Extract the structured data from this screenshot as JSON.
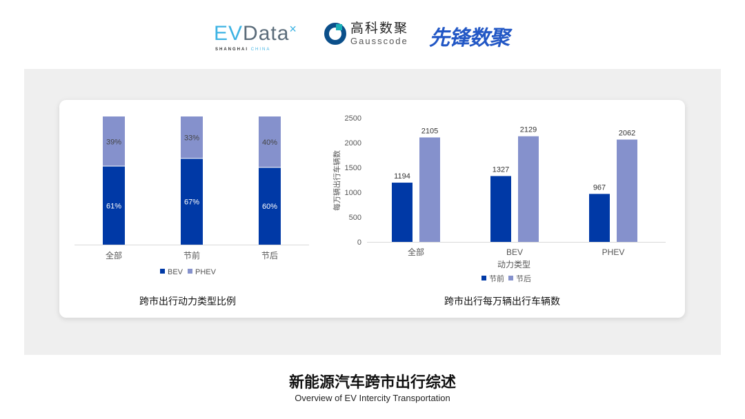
{
  "logos": {
    "evdata": {
      "text": "EVData",
      "sub1": "SHANGHAI",
      "sub2": "CHINA"
    },
    "gausscode": {
      "cn": "高科数聚",
      "en": "Gausscode"
    },
    "xianfeng": {
      "text": "先锋数聚"
    }
  },
  "colors": {
    "before_bev": "#0039a6",
    "after_phev": "#8591cc",
    "panel": "#efefef"
  },
  "chart_data": [
    {
      "type": "bar",
      "stacked": true,
      "percent": true,
      "title": "跨市出行动力类型比例",
      "categories": [
        "全部",
        "节前",
        "节后"
      ],
      "series": [
        {
          "name": "BEV",
          "values": [
            61,
            67,
            60
          ],
          "labels": [
            "61%",
            "67%",
            "60%"
          ]
        },
        {
          "name": "PHEV",
          "values": [
            39,
            33,
            40
          ],
          "labels": [
            "39%",
            "33%",
            "40%"
          ]
        }
      ],
      "ylim": [
        0,
        100
      ],
      "legend": "bottom",
      "grid": false
    },
    {
      "type": "bar",
      "title": "跨市出行每万辆出行车辆数",
      "xlabel": "动力类型",
      "ylabel": "每万辆出行车辆数",
      "categories": [
        "全部",
        "BEV",
        "PHEV"
      ],
      "series": [
        {
          "name": "节前",
          "values": [
            1194,
            1327,
            967
          ]
        },
        {
          "name": "节后",
          "values": [
            2105,
            2129,
            2062
          ]
        }
      ],
      "ylim": [
        0,
        2500
      ],
      "yticks": [
        0,
        500,
        1000,
        1500,
        2000,
        2500
      ],
      "legend": "bottom",
      "grid": false
    }
  ],
  "footer": {
    "title": "新能源汽车跨市出行综述",
    "subtitle": "Overview of EV Intercity Transportation"
  }
}
